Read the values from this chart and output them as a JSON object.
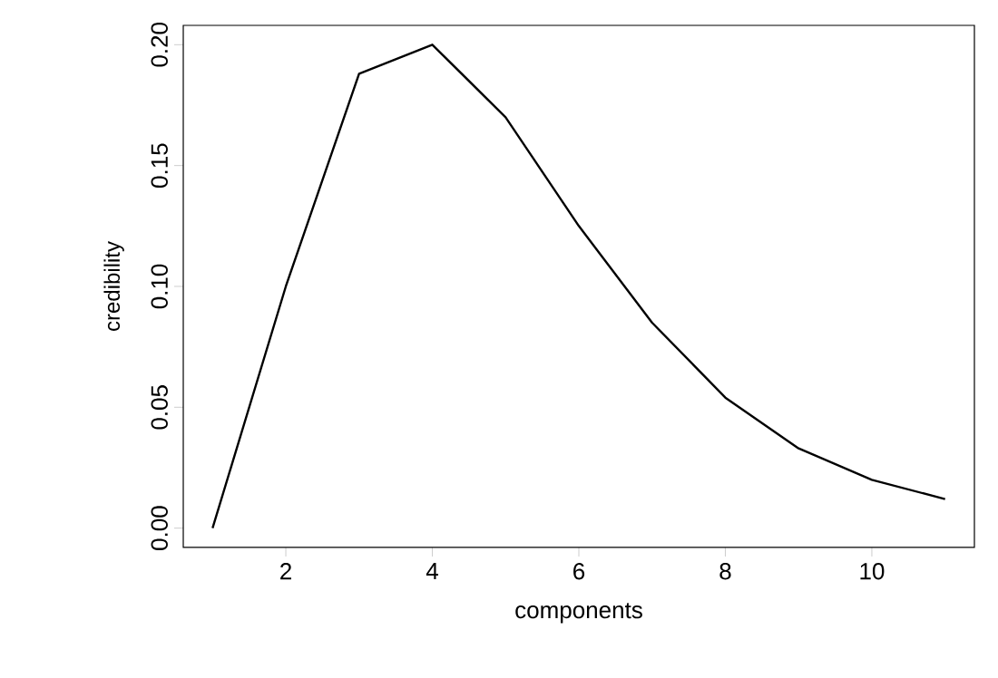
{
  "chart_data": {
    "type": "line",
    "xlabel": "components",
    "ylabel": "credibility",
    "x": [
      1,
      2,
      3,
      4,
      5,
      6,
      7,
      8,
      9,
      10,
      11
    ],
    "series": [
      {
        "color": "#000000",
        "values": [
          0.0,
          0.1,
          0.188,
          0.2,
          0.17,
          0.125,
          0.085,
          0.054,
          0.033,
          0.02,
          0.012
        ]
      }
    ],
    "xlim": [
      0.6,
      11.4
    ],
    "ylim": [
      -0.008,
      0.208
    ],
    "xticks": [
      2,
      4,
      6,
      8,
      10
    ],
    "yticks": [
      {
        "value": 0,
        "label": "0.00"
      },
      {
        "value": 0.05,
        "label": "0.05"
      },
      {
        "value": 0.1,
        "label": "0.10"
      },
      {
        "value": 0.15,
        "label": "0.15"
      },
      {
        "value": 0.2,
        "label": "0.20"
      }
    ],
    "grid": false,
    "marker": "none",
    "line_style": "solid"
  }
}
